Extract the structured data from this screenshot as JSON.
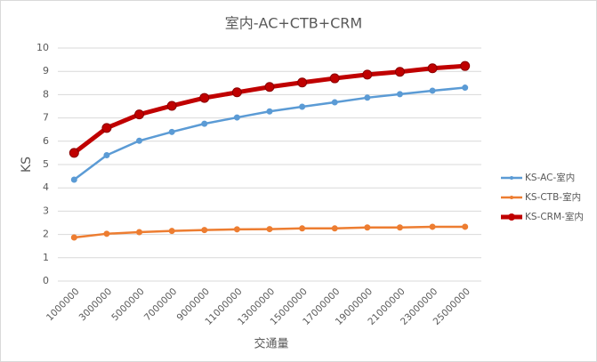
{
  "chart_data": {
    "type": "line",
    "title": "室内-AC+CTB+CRM",
    "x_label": "交通量",
    "y_label": "KS",
    "categories": [
      "1000000",
      "3000000",
      "5000000",
      "7000000",
      "9000000",
      "11000000",
      "13000000",
      "15000000",
      "17000000",
      "19000000",
      "21000000",
      "23000000",
      "25000000"
    ],
    "series": [
      {
        "name": "KS-AC-室内",
        "color": "#5b9bd5",
        "values": [
          4.35,
          5.4,
          6.02,
          6.4,
          6.75,
          7.02,
          7.28,
          7.48,
          7.67,
          7.87,
          8.02,
          8.17,
          8.3
        ]
      },
      {
        "name": "KS-CTB-室内",
        "color": "#ed7d31",
        "values": [
          1.87,
          2.03,
          2.1,
          2.15,
          2.19,
          2.22,
          2.23,
          2.26,
          2.26,
          2.3,
          2.3,
          2.33,
          2.33
        ]
      },
      {
        "name": "KS-CRM-室内",
        "color": "#c00000",
        "values": [
          5.5,
          6.57,
          7.15,
          7.52,
          7.86,
          8.1,
          8.33,
          8.52,
          8.7,
          8.86,
          8.98,
          9.13,
          9.23
        ]
      }
    ],
    "ylim": [
      0,
      10
    ],
    "yticks": [
      0,
      1,
      2,
      3,
      4,
      5,
      6,
      7,
      8,
      9,
      10
    ],
    "grid": true,
    "legend": "right"
  }
}
